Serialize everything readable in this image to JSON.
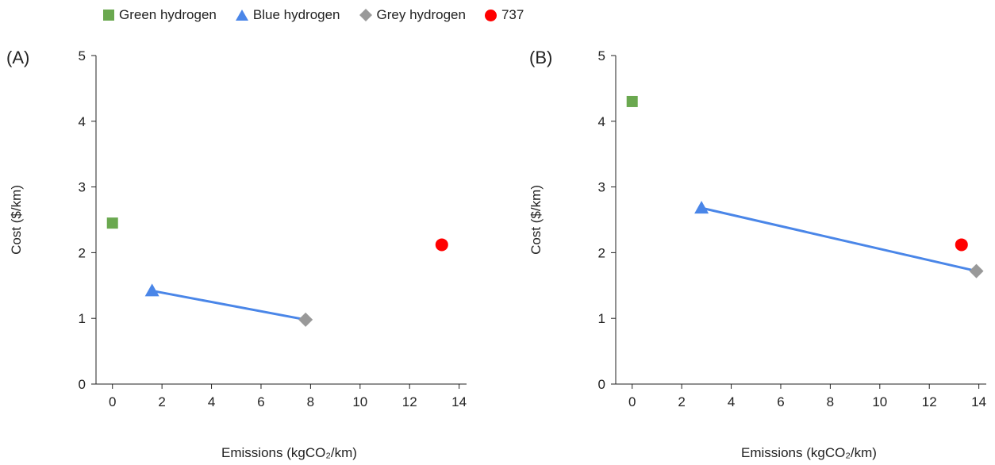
{
  "legend": [
    {
      "name": "Green hydrogen",
      "marker": "square",
      "color": "#6aa84f"
    },
    {
      "name": "Blue hydrogen",
      "marker": "triangle",
      "color": "#4a86e8"
    },
    {
      "name": "Grey hydrogen",
      "marker": "diamond",
      "color": "#999999"
    },
    {
      "name": "737",
      "marker": "circle",
      "color": "#ff0000"
    }
  ],
  "chart_data": [
    {
      "panel": "(A)",
      "type": "scatter",
      "xlabel": "Emissions (kgCO₂/km)",
      "ylabel": "Cost ($/km)",
      "xlim": [
        -0.6,
        14.3
      ],
      "ylim": [
        0,
        5
      ],
      "xticks": [
        0,
        2,
        4,
        6,
        8,
        10,
        12,
        14
      ],
      "yticks": [
        0,
        1,
        2,
        3,
        4,
        5
      ],
      "grid": false,
      "series": [
        {
          "name": "Green hydrogen",
          "x": [
            0
          ],
          "y": [
            2.45
          ]
        },
        {
          "name": "Blue hydrogen",
          "x": [
            1.6
          ],
          "y": [
            1.42
          ]
        },
        {
          "name": "Grey hydrogen",
          "x": [
            7.8
          ],
          "y": [
            0.98
          ]
        },
        {
          "name": "737",
          "x": [
            13.3
          ],
          "y": [
            2.12
          ]
        }
      ],
      "lines": [
        {
          "from": "Blue hydrogen",
          "to": "Grey hydrogen",
          "x": [
            1.6,
            7.8
          ],
          "y": [
            1.42,
            0.98
          ],
          "color": "#4a86e8"
        }
      ]
    },
    {
      "panel": "(B)",
      "type": "scatter",
      "xlabel": "Emissions (kgCO₂/km)",
      "ylabel": "Cost ($/km)",
      "xlim": [
        -0.6,
        14.3
      ],
      "ylim": [
        0,
        5
      ],
      "xticks": [
        0,
        2,
        4,
        6,
        8,
        10,
        12,
        14
      ],
      "yticks": [
        0,
        1,
        2,
        3,
        4,
        5
      ],
      "grid": false,
      "series": [
        {
          "name": "Green hydrogen",
          "x": [
            0
          ],
          "y": [
            4.3
          ]
        },
        {
          "name": "Blue hydrogen",
          "x": [
            2.8
          ],
          "y": [
            2.68
          ]
        },
        {
          "name": "Grey hydrogen",
          "x": [
            13.9
          ],
          "y": [
            1.72
          ]
        },
        {
          "name": "737",
          "x": [
            13.3
          ],
          "y": [
            2.12
          ]
        }
      ],
      "lines": [
        {
          "from": "Blue hydrogen",
          "to": "Grey hydrogen",
          "x": [
            2.8,
            13.9
          ],
          "y": [
            2.68,
            1.72
          ],
          "color": "#4a86e8"
        }
      ]
    }
  ]
}
